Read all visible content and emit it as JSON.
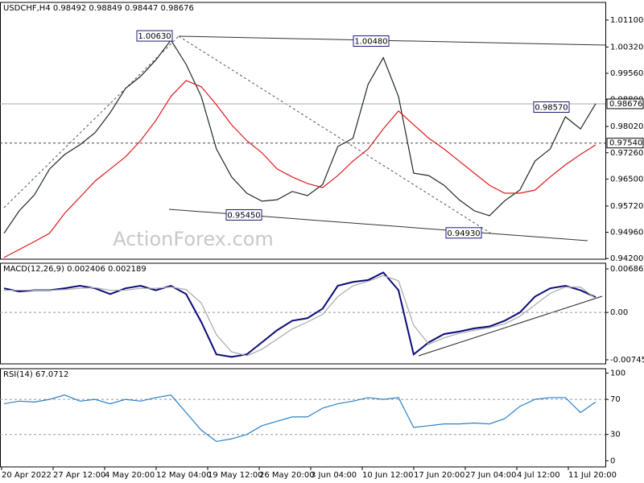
{
  "header": {
    "title": "USDCHF,H4",
    "ohlc": [
      0.98492,
      0.98849,
      0.98447,
      0.98676
    ]
  },
  "watermark": "ActionForex.com",
  "time_labels": [
    "20 Apr 2022",
    "27 Apr 12:00",
    "4 May 20:00",
    "12 May 04:00",
    "19 May 12:00",
    "26 May 20:00",
    "3 Jun 04:00",
    "10 Jun 12:00",
    "17 Jun 20:00",
    "27 Jun 04:00",
    "4 Jul 12:00",
    "11 Jul 20:00"
  ],
  "chart_data": [
    {
      "type": "line",
      "ylim": [
        0.9418,
        1.0161
      ],
      "yticks": [
        {
          "value": 1.011,
          "label": "1.01100"
        },
        {
          "value": 1.0032,
          "label": "1.00320"
        },
        {
          "value": 0.9956,
          "label": "0.99560"
        },
        {
          "value": 0.988,
          "label": "0.98800"
        },
        {
          "value": 0.9802,
          "label": "0.98020"
        },
        {
          "value": 0.9726,
          "label": "0.97260"
        },
        {
          "value": 0.965,
          "label": "0.96500"
        },
        {
          "value": 0.9572,
          "label": "0.95720"
        },
        {
          "value": 0.9496,
          "label": "0.94960"
        },
        {
          "value": 0.942,
          "label": "0.94200"
        }
      ],
      "levels": [
        {
          "value": 0.98676,
          "label": "0.98676"
        },
        {
          "value": 0.9754,
          "label": "0.97540"
        }
      ],
      "annotations": [
        {
          "value": 1.0063,
          "label": "1.00630"
        },
        {
          "value": 1.0048,
          "label": "1.00480"
        },
        {
          "value": 0.9545,
          "label": "0.95450"
        },
        {
          "value": 0.9493,
          "label": "0.94930"
        },
        {
          "value": 0.9857,
          "label": "0.98570"
        }
      ],
      "series": [
        {
          "color": "#1e2a1e",
          "values": [
            0.9493,
            0.9558,
            0.9604,
            0.9679,
            0.9721,
            0.9749,
            0.9784,
            0.9842,
            0.9912,
            0.9947,
            0.9994,
            1.0052,
            0.9982,
            0.9889,
            0.9737,
            0.9656,
            0.9609,
            0.9586,
            0.959,
            0.9614,
            0.9602,
            0.9634,
            0.9744,
            0.9768,
            0.9924,
            1.0001,
            0.9889,
            0.9667,
            0.966,
            0.9632,
            0.959,
            0.9558,
            0.9544,
            0.9587,
            0.9618,
            0.9702,
            0.9737,
            0.983,
            0.9795,
            0.9868
          ]
        },
        {
          "color": "#e0181b",
          "values": [
            0.9423,
            0.9446,
            0.9469,
            0.9493,
            0.9551,
            0.9597,
            0.9644,
            0.9679,
            0.9714,
            0.9761,
            0.9819,
            0.9889,
            0.9935,
            0.9917,
            0.9865,
            0.9807,
            0.9761,
            0.9726,
            0.9679,
            0.9656,
            0.9637,
            0.9625,
            0.966,
            0.9702,
            0.9737,
            0.9795,
            0.9847,
            0.9807,
            0.9768,
            0.9737,
            0.9702,
            0.9667,
            0.9632,
            0.9609,
            0.9609,
            0.9618,
            0.9656,
            0.9691,
            0.9721,
            0.9749
          ]
        }
      ]
    },
    {
      "type": "line",
      "title": "MACD(12,26,9)",
      "readings": [
        0.002406,
        0.002189
      ],
      "ylim": [
        -0.00809,
        0.00775
      ],
      "yticks": [
        0.006861,
        {
          "value": 0,
          "label": "0.00"
        },
        -0.007454
      ],
      "hlines": [
        0
      ],
      "series": [
        {
          "color": "#0a0a78",
          "values": [
            0.0038,
            0.0033,
            0.0035,
            0.0035,
            0.0038,
            0.0042,
            0.0038,
            0.0029,
            0.0038,
            0.0042,
            0.0035,
            0.0042,
            0.0029,
            -0.0015,
            -0.0066,
            -0.007,
            -0.0066,
            -0.0047,
            -0.0028,
            -0.0013,
            -0.0009,
            0.0006,
            0.0042,
            0.0048,
            0.0051,
            0.0063,
            0.0035,
            -0.0066,
            -0.0047,
            -0.0034,
            -0.003,
            -0.0025,
            -0.0022,
            -0.0013,
            0,
            0.0025,
            0.0038,
            0.0042,
            0.0035,
            0.0024
          ]
        },
        {
          "color": "#a8a8a8",
          "values": [
            0.0035,
            0.0035,
            0.0035,
            0.0035,
            0.0036,
            0.0038,
            0.0039,
            0.0035,
            0.0035,
            0.0038,
            0.0038,
            0.004,
            0.0036,
            0.0015,
            -0.0035,
            -0.0062,
            -0.0068,
            -0.0058,
            -0.0042,
            -0.0026,
            -0.0015,
            -0.0003,
            0.0025,
            0.0042,
            0.0049,
            0.0058,
            0.005,
            -0.002,
            -0.005,
            -0.004,
            -0.0033,
            -0.0028,
            -0.0024,
            -0.0018,
            -0.0006,
            0.0012,
            0.003,
            0.004,
            0.004,
            0.0022
          ]
        }
      ]
    },
    {
      "type": "line",
      "title": "RSI(14)",
      "readings": [
        67.0712
      ],
      "ylim": [
        -7,
        105
      ],
      "yticks": [
        100,
        70,
        30,
        0
      ],
      "hlines": [
        70,
        30
      ],
      "series": [
        {
          "color": "#2a80c8",
          "values": [
            65,
            68,
            67,
            70,
            75,
            68,
            70,
            65,
            70,
            68,
            72,
            75,
            55,
            35,
            22,
            25,
            30,
            40,
            45,
            50,
            50,
            60,
            65,
            68,
            72,
            70,
            72,
            38,
            40,
            42,
            42,
            43,
            42,
            48,
            62,
            70,
            72,
            72,
            55,
            67
          ]
        }
      ]
    }
  ]
}
